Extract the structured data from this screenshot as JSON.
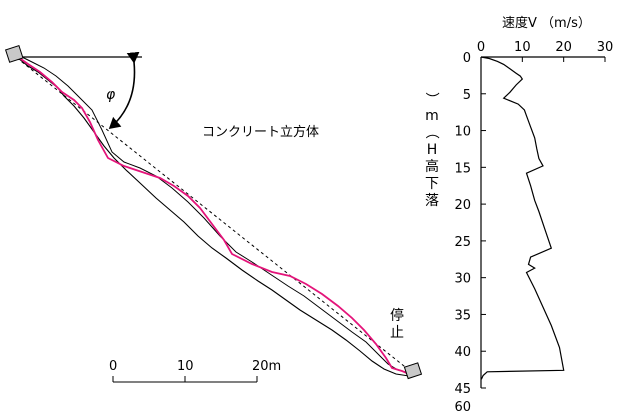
{
  "colors": {
    "trajectory": "#e4147a",
    "slope": "#000000",
    "block_fill": "#c8c8c8"
  },
  "diagram": {
    "angle_symbol": "φ",
    "material_label": "コンクリート立方体",
    "stop_label_chars": [
      "停",
      "止"
    ],
    "scale_bar": {
      "ticks": [
        "0",
        "10",
        "20m"
      ]
    }
  },
  "chart_data": {
    "type": "line",
    "title": "速度V （m/s）",
    "ylabel_chars": [
      "落",
      "下",
      "高",
      "H",
      "（",
      "m",
      "）"
    ],
    "x_ticks": [
      0,
      10,
      20,
      30
    ],
    "y_ticks": [
      0,
      5,
      10,
      15,
      20,
      25,
      30,
      35,
      40,
      45,
      60
    ],
    "xlim": [
      0,
      30
    ],
    "ylim_axis": [
      0,
      45
    ],
    "series": [
      {
        "points": [
          [
            0,
            0
          ],
          [
            2,
            0.2
          ],
          [
            4,
            0.6
          ],
          [
            5.5,
            1
          ],
          [
            7,
            1.6
          ],
          [
            8.5,
            2.2
          ],
          [
            9.5,
            2.6
          ],
          [
            10,
            3
          ],
          [
            8.5,
            3.8
          ],
          [
            7,
            4.8
          ],
          [
            5.5,
            5.6
          ],
          [
            9,
            6.4
          ],
          [
            10.5,
            7.2
          ],
          [
            11,
            8
          ],
          [
            12,
            9.5
          ],
          [
            13,
            11
          ],
          [
            13.5,
            12.5
          ],
          [
            14,
            13.8
          ],
          [
            15,
            14.8
          ],
          [
            11,
            15.8
          ],
          [
            12,
            17.5
          ],
          [
            13,
            19.5
          ],
          [
            14,
            21
          ],
          [
            15.5,
            23.5
          ],
          [
            17,
            26
          ],
          [
            12,
            27.2
          ],
          [
            11.5,
            28.2
          ],
          [
            13,
            28.7
          ],
          [
            11,
            29.3
          ],
          [
            13,
            31.5
          ],
          [
            15,
            34
          ],
          [
            17,
            36.5
          ],
          [
            19,
            39.5
          ],
          [
            20,
            42.6
          ],
          [
            1.5,
            42.8
          ],
          [
            0.5,
            43.3
          ],
          [
            0.1,
            43.8
          ]
        ]
      }
    ]
  }
}
